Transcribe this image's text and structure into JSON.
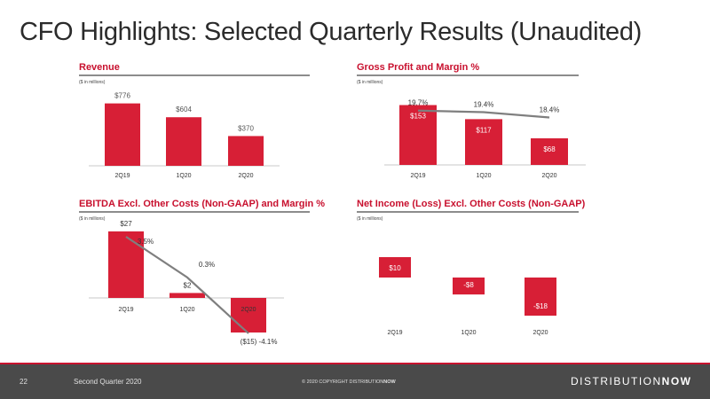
{
  "title": "CFO Highlights: Selected Quarterly Results (Unaudited)",
  "colors": {
    "bar": "#d71f36",
    "line": "#7f7f7f",
    "accent": "#c8102e"
  },
  "footer": {
    "page": "22",
    "quarter": "Second Quarter 2020",
    "copyright_prefix": "© 2020 COPYRIGHT DISTRIBUTION",
    "copyright_bold": "NOW",
    "logo_prefix": "DISTRIBUTION",
    "logo_bold": "NOW"
  },
  "chart_data": [
    {
      "id": "revenue",
      "type": "bar",
      "title": "Revenue",
      "units": "($ in millions)",
      "categories": [
        "2Q19",
        "1Q20",
        "2Q20"
      ],
      "values": [
        776,
        604,
        370
      ],
      "labels": [
        "$776",
        "$604",
        "$370"
      ],
      "ylim": [
        0,
        860
      ]
    },
    {
      "id": "gross-profit",
      "type": "bar",
      "title": "Gross Profit and Margin %",
      "units": "($ in millions)",
      "categories": [
        "2Q19",
        "1Q20",
        "2Q20"
      ],
      "values": [
        153,
        117,
        68
      ],
      "labels": [
        "$153",
        "$117",
        "$68"
      ],
      "ylim": [
        0,
        170
      ],
      "line": {
        "values": [
          19.7,
          19.4,
          18.4
        ],
        "labels": [
          "19.7%",
          "19.4%",
          "18.4%"
        ],
        "ylim": [
          0,
          21
        ]
      }
    },
    {
      "id": "ebitda",
      "type": "bar",
      "title": "EBITDA Excl. Other Costs (Non-GAAP) and Margin %",
      "units": "($ in millions)",
      "categories": [
        "2Q19",
        "1Q20",
        "2Q20"
      ],
      "values": [
        27,
        2,
        -15
      ],
      "labels": [
        "$27",
        "$2",
        "($15)"
      ],
      "ylim": [
        -15,
        27
      ],
      "line": {
        "values": [
          3.5,
          0.3,
          -4.1
        ],
        "labels": [
          "3.5%",
          "0.3%",
          "-4.1%"
        ],
        "ylim": [
          -4.1,
          3.5
        ]
      }
    },
    {
      "id": "net-income",
      "type": "bar",
      "title": "Net Income (Loss) Excl. Other Costs (Non-GAAP)",
      "units": "($ in millions)",
      "categories": [
        "2Q19",
        "1Q20",
        "2Q20"
      ],
      "values": [
        10,
        -8,
        -18
      ],
      "labels": [
        "$10",
        "-$8",
        "-$18"
      ],
      "ylim": [
        -18,
        10
      ]
    }
  ]
}
